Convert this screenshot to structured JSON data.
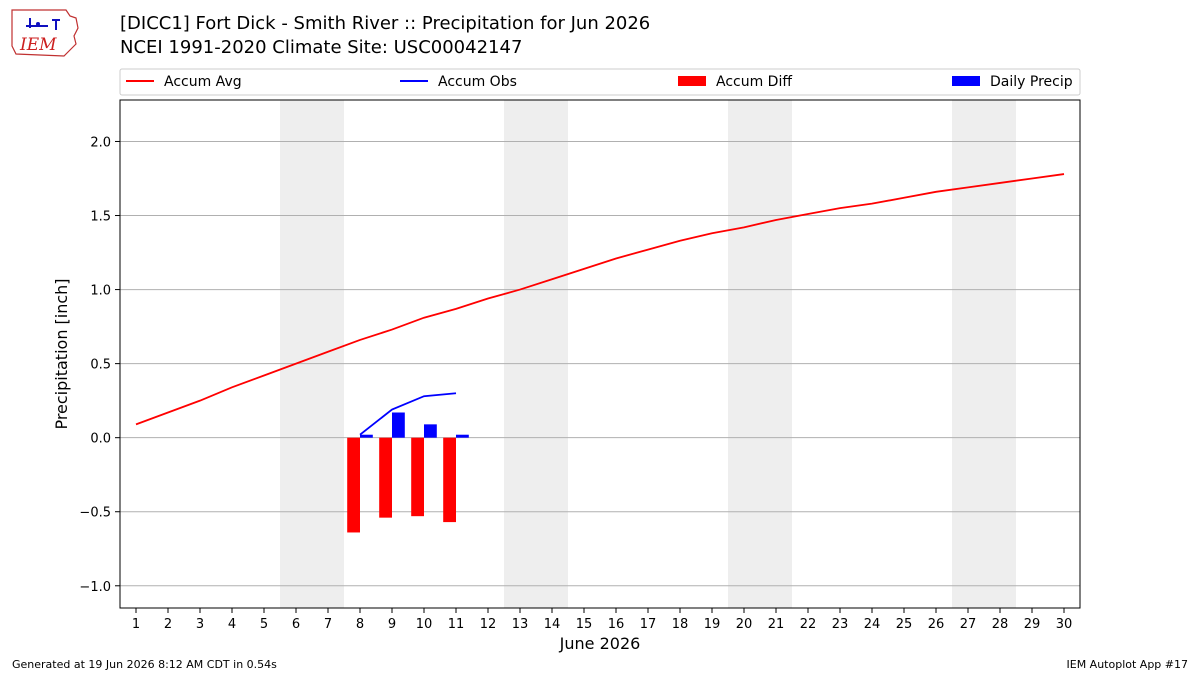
{
  "header": {
    "title_line1": "[DICC1] Fort Dick - Smith River :: Precipitation for Jun 2026",
    "title_line2": "NCEI 1991-2020 Climate Site: USC00042147",
    "logo_text": "IEM"
  },
  "footer": {
    "generated": "Generated at 19 Jun 2026 8:12 AM CDT in 0.54s",
    "app": "IEM Autoplot App #17"
  },
  "colors": {
    "accum_avg": "#ff0000",
    "accum_obs": "#0000ff",
    "accum_diff": "#ff0000",
    "daily_precip": "#0000ff",
    "weekend_shade": "#eeeeee",
    "grid": "#b0b0b0"
  },
  "chart_data": {
    "type": "line",
    "xlabel": "June 2026",
    "ylabel": "Precipitation [inch]",
    "xlim": [
      0.5,
      30.5
    ],
    "ylim": [
      -1.15,
      2.28
    ],
    "x_ticks": [
      1,
      2,
      3,
      4,
      5,
      6,
      7,
      8,
      9,
      10,
      11,
      12,
      13,
      14,
      15,
      16,
      17,
      18,
      19,
      20,
      21,
      22,
      23,
      24,
      25,
      26,
      27,
      28,
      29,
      30
    ],
    "y_ticks": [
      -1.0,
      -0.5,
      0.0,
      0.5,
      1.0,
      1.5,
      2.0
    ],
    "y_tick_labels": [
      "−1.0",
      "−0.5",
      "0.0",
      "0.5",
      "1.0",
      "1.5",
      "2.0"
    ],
    "grid": "horizontal",
    "legend_position": "top",
    "weekend_spans": [
      [
        5.5,
        7.5
      ],
      [
        12.5,
        14.5
      ],
      [
        19.5,
        21.5
      ],
      [
        26.5,
        28.5
      ]
    ],
    "legend": [
      "Accum Avg",
      "Accum Obs",
      "Accum Diff",
      "Daily Precip"
    ],
    "series": [
      {
        "name": "Accum Avg",
        "kind": "line",
        "x": [
          1,
          2,
          3,
          4,
          5,
          6,
          7,
          8,
          9,
          10,
          11,
          12,
          13,
          14,
          15,
          16,
          17,
          18,
          19,
          20,
          21,
          22,
          23,
          24,
          25,
          26,
          27,
          28,
          29,
          30
        ],
        "values": [
          0.09,
          0.17,
          0.25,
          0.34,
          0.42,
          0.5,
          0.58,
          0.66,
          0.73,
          0.81,
          0.87,
          0.94,
          1.0,
          1.07,
          1.14,
          1.21,
          1.27,
          1.33,
          1.38,
          1.42,
          1.47,
          1.51,
          1.55,
          1.58,
          1.62,
          1.66,
          1.69,
          1.72,
          1.75,
          1.78
        ]
      },
      {
        "name": "Accum Obs",
        "kind": "line",
        "x": [
          8,
          9,
          10,
          11
        ],
        "values": [
          0.02,
          0.19,
          0.28,
          0.3
        ]
      },
      {
        "name": "Accum Diff",
        "kind": "bar",
        "x": [
          8,
          9,
          10,
          11
        ],
        "values": [
          -0.64,
          -0.54,
          -0.53,
          -0.57
        ]
      },
      {
        "name": "Daily Precip",
        "kind": "bar",
        "x": [
          8,
          9,
          10,
          11
        ],
        "values": [
          0.02,
          0.17,
          0.09,
          0.02
        ]
      }
    ]
  }
}
